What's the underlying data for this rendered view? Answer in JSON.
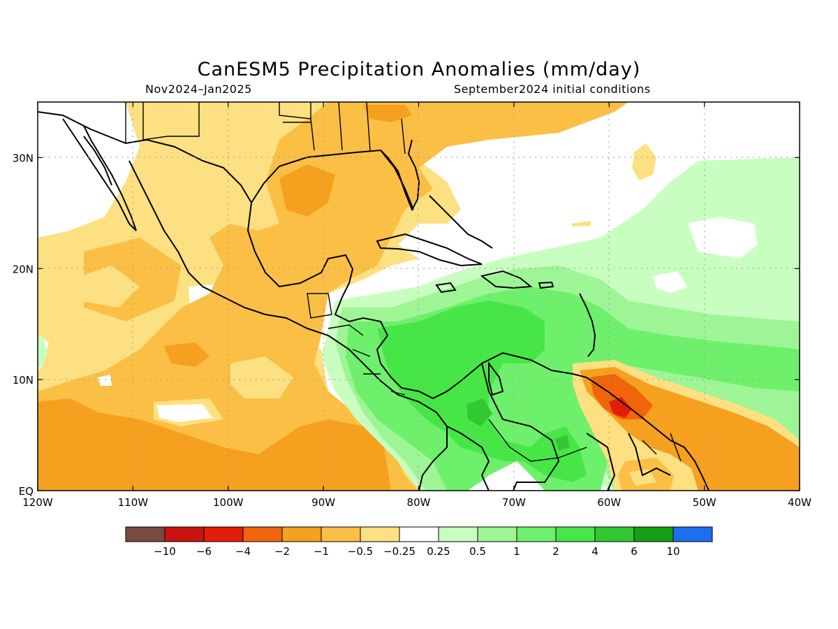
{
  "title": "CanESM5 Precipitation Anomalies (mm/day)",
  "period": "Nov2024–Jan2025",
  "initial_conditions": "September2024 initial conditions",
  "map": {
    "lon_range": [
      -120,
      -40
    ],
    "lat_range": [
      0,
      35
    ],
    "lon_ticks": [
      "120W",
      "110W",
      "100W",
      "90W",
      "80W",
      "70W",
      "60W",
      "50W",
      "40W"
    ],
    "lat_ticks": [
      "EQ",
      "10N",
      "20N",
      "30N"
    ],
    "grid": "dotted"
  },
  "colorbar": {
    "labels": [
      "−10",
      "−6",
      "−4",
      "−2",
      "−1",
      "−0.5",
      "−0.25",
      "0.25",
      "0.5",
      "1",
      "2",
      "4",
      "6",
      "10"
    ],
    "colors": [
      "#7a4a40",
      "#c81410",
      "#e11e0a",
      "#f0640a",
      "#f5a01e",
      "#fbbf46",
      "#fde082",
      "#ffffff",
      "#c8ffc0",
      "#9ef596",
      "#6ef06c",
      "#46e646",
      "#32c832",
      "#14a014",
      "#1e6ef0"
    ]
  }
}
